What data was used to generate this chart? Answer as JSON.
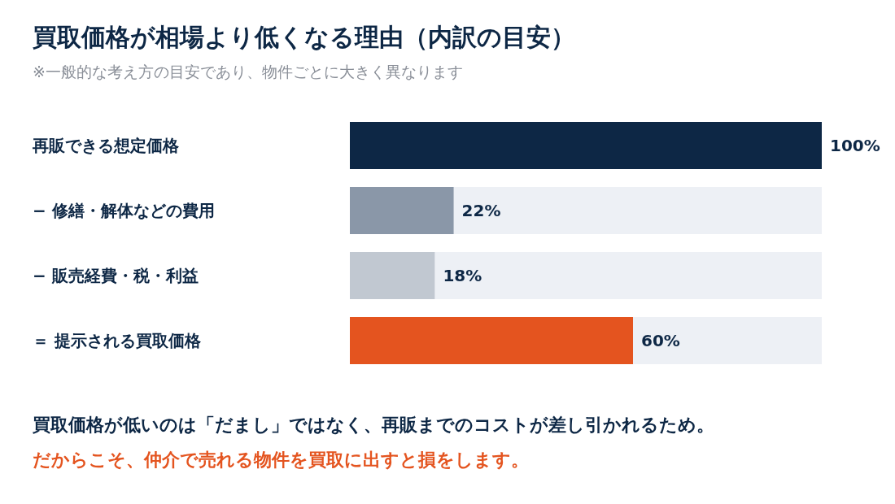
{
  "chart_data": {
    "type": "bar",
    "orientation": "horizontal",
    "title": "買取価格が相場より低くなる理由（内訳の目安）",
    "subtitle": "※一般的な考え方の目安であり、物件ごとに大きく異なります",
    "categories": [
      "再販できる想定価格",
      "− 修繕・解体などの費用",
      "− 販売経費・税・利益",
      "＝ 提示される買取価格"
    ],
    "values": [
      100,
      22,
      18,
      60
    ],
    "colors": [
      "#0d2745",
      "#8a97a8",
      "#c1c8d1",
      "#e4541f"
    ],
    "value_labels": [
      "100%",
      "22%",
      "18%",
      "60%"
    ],
    "annotations": [
      "買取価格が低いのは「だまし」ではなく、再販までのコストが差し引かれるため。",
      "だからこそ、仲介で売れる物件を買取に出すと損をします。"
    ]
  }
}
